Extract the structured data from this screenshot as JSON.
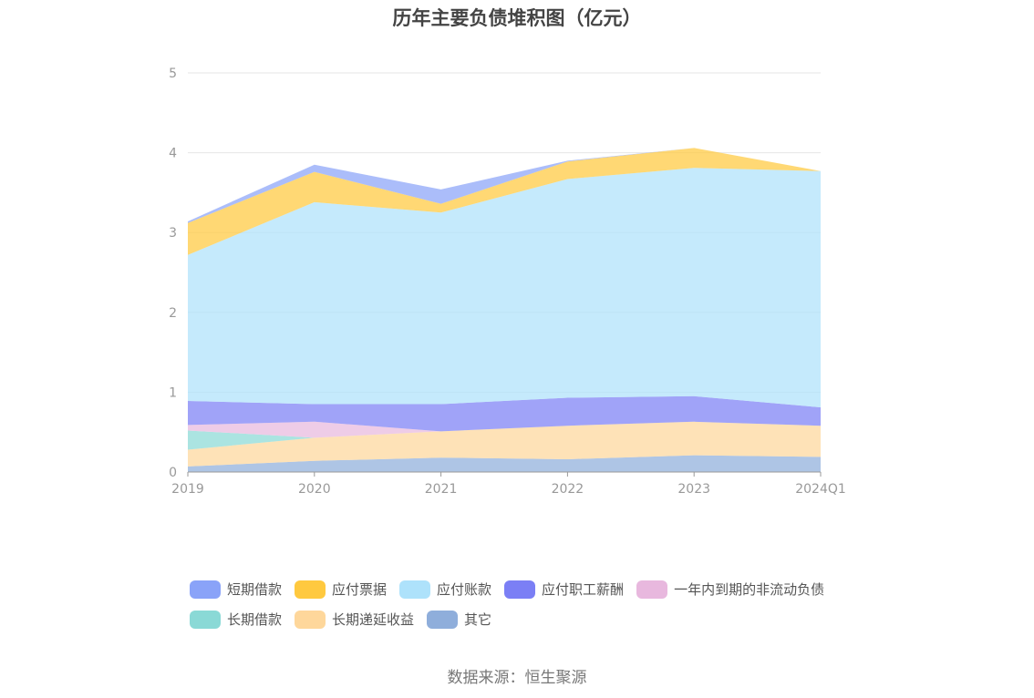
{
  "chart_data": {
    "type": "area",
    "stacked": true,
    "title": "历年主要负债堆积图（亿元）",
    "x": [
      "2019",
      "2020",
      "2021",
      "2022",
      "2023",
      "2024Q1"
    ],
    "ylim": [
      0,
      5
    ],
    "yticks": [
      "0",
      "1",
      "2",
      "3",
      "4",
      "5"
    ],
    "grid": true,
    "legend_position": "bottom",
    "series": [
      {
        "name": "其它",
        "color": "#8faedb",
        "values": [
          0.07,
          0.14,
          0.18,
          0.16,
          0.21,
          0.19
        ]
      },
      {
        "name": "长期递延收益",
        "color": "#fed79b",
        "values": [
          0.21,
          0.29,
          0.33,
          0.42,
          0.42,
          0.39
        ]
      },
      {
        "name": "长期借款",
        "color": "#8ad9d6",
        "values": [
          0.24,
          0.0,
          0.0,
          0.0,
          0.0,
          0.0
        ]
      },
      {
        "name": "一年内到期的非流动负债",
        "color": "#e8b8de",
        "values": [
          0.07,
          0.2,
          0.0,
          0.0,
          0.0,
          0.0
        ]
      },
      {
        "name": "应付职工薪酬",
        "color": "#7b7ff5",
        "values": [
          0.3,
          0.22,
          0.34,
          0.35,
          0.32,
          0.23
        ]
      },
      {
        "name": "应付账款",
        "color": "#aee2fb",
        "values": [
          1.83,
          2.53,
          2.4,
          2.74,
          2.86,
          2.96
        ]
      },
      {
        "name": "应付票据",
        "color": "#ffc93f",
        "values": [
          0.4,
          0.38,
          0.11,
          0.22,
          0.25,
          0.0
        ]
      },
      {
        "name": "短期借款",
        "color": "#8aa3f8",
        "values": [
          0.02,
          0.09,
          0.18,
          0.01,
          0.0,
          0.0
        ]
      }
    ],
    "legend_order": [
      "短期借款",
      "应付票据",
      "应付账款",
      "应付职工薪酬",
      "一年内到期的非流动负债",
      "长期借款",
      "长期递延收益",
      "其它"
    ]
  },
  "source": "数据来源：恒生聚源"
}
